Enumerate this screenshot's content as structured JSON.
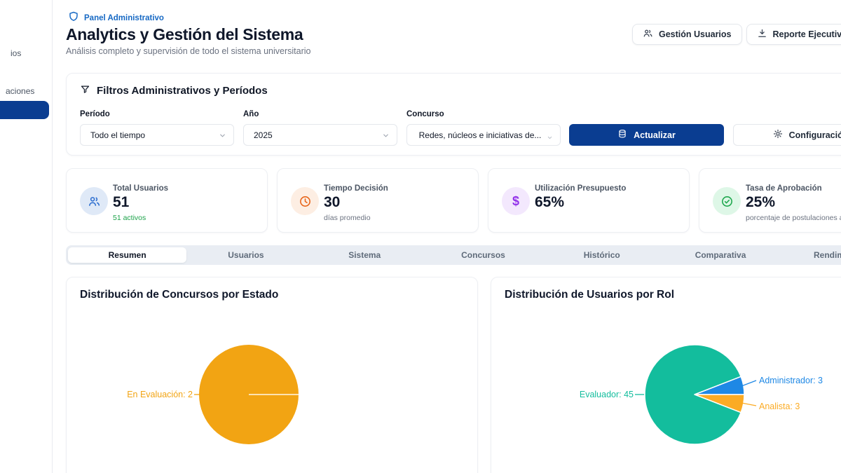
{
  "sidebar": {
    "visible_item_fragments": [
      "ios",
      "aciones"
    ],
    "active_item_color": "#0a3d91"
  },
  "header": {
    "badge": "Panel Administrativo",
    "title": "Analytics y Gestión del Sistema",
    "subtitle": "Análisis completo y supervisión de todo el sistema universitario",
    "actions": {
      "users_button": "Gestión Usuarios",
      "report_button": "Reporte Ejecutivo"
    }
  },
  "filters": {
    "title": "Filtros Administrativos y Períodos",
    "fields": [
      {
        "label": "Período",
        "value": "Todo el tiempo"
      },
      {
        "label": "Año",
        "value": "2025"
      },
      {
        "label": "Concurso",
        "value": "Redes, núcleos e iniciativas de..."
      }
    ],
    "update_label": "Actualizar",
    "settings_label": "Configuración"
  },
  "stats": [
    {
      "label": "Total Usuarios",
      "value": "51",
      "sub": "51 activos"
    },
    {
      "label": "Tiempo Decisión",
      "value": "30",
      "sub": "días promedio"
    },
    {
      "label": "Utilización Presupuesto",
      "value": "65%",
      "sub": ""
    },
    {
      "label": "Tasa de Aprobación",
      "value": "25%",
      "sub": "porcentaje de postulaciones aprobadas"
    }
  ],
  "tabs": {
    "items": [
      "Resumen",
      "Usuarios",
      "Sistema",
      "Concursos",
      "Histórico",
      "Comparativa",
      "Rendimiento"
    ],
    "active": "Resumen"
  },
  "chart_data": [
    {
      "type": "pie",
      "title": "Distribución de Concursos por Estado",
      "slices": [
        {
          "label": "En Evaluación",
          "value": 2,
          "color": "#f2a413",
          "display": "En Evaluación: 2"
        }
      ]
    },
    {
      "type": "pie",
      "title": "Distribución de Usuarios por Rol",
      "slices": [
        {
          "label": "Evaluador",
          "value": 45,
          "color": "#13bd9d",
          "display": "Evaluador: 45"
        },
        {
          "label": "Administrador",
          "value": 3,
          "color": "#1e88e5",
          "display": "Administrador: 3"
        },
        {
          "label": "Analista",
          "value": 3,
          "color": "#fbab24",
          "display": "Analista: 3"
        }
      ]
    }
  ],
  "colors": {
    "primary_dark_blue": "#0a3d91",
    "badge_blue": "#1769c4",
    "stat_icon_blue": "#2e6fd0",
    "stat_icon_orange": "#e8651a",
    "stat_icon_purple": "#9333ea",
    "stat_icon_green": "#1fa84e",
    "positive_green": "#1ea34b"
  }
}
